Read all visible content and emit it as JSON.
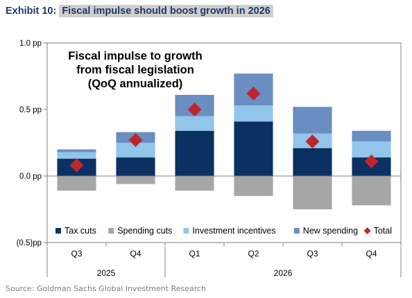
{
  "header": {
    "exhibit_label": "Exhibit 10:",
    "headline": "Fiscal impulse should boost growth in 2026"
  },
  "source": "Source: Goldman Sachs Global Investment Research",
  "chart_data": {
    "type": "bar",
    "stacked": true,
    "title_lines": [
      "Fiscal impulse to growth",
      "from fiscal legislation",
      "(QoQ annualized)"
    ],
    "categories": [
      "Q3",
      "Q4",
      "Q1",
      "Q2",
      "Q3",
      "Q4"
    ],
    "year_groups": [
      {
        "label": "2025",
        "start": 0,
        "end": 1
      },
      {
        "label": "2026",
        "start": 2,
        "end": 5
      }
    ],
    "ylim": [
      -0.5,
      1.0
    ],
    "yticks": [
      {
        "value": 1.0,
        "label": "1.0 pp"
      },
      {
        "value": 0.5,
        "label": "0.5 pp"
      },
      {
        "value": 0.0,
        "label": "0.0 pp"
      },
      {
        "value": -0.5,
        "label": "(0.5)pp"
      }
    ],
    "series": [
      {
        "name": "Tax cuts",
        "color": "#0a3161",
        "values": [
          0.13,
          0.14,
          0.34,
          0.41,
          0.21,
          0.14
        ]
      },
      {
        "name": "Spending cuts",
        "color": "#a6a6a6",
        "values": [
          -0.11,
          -0.06,
          -0.11,
          -0.15,
          -0.25,
          -0.22
        ]
      },
      {
        "name": "Investment incentives",
        "color": "#92c5ea",
        "values": [
          0.05,
          0.11,
          0.11,
          0.12,
          0.11,
          0.12
        ]
      },
      {
        "name": "New spending",
        "color": "#6a8ec2",
        "values": [
          0.02,
          0.08,
          0.16,
          0.24,
          0.2,
          0.08
        ]
      }
    ],
    "total": {
      "name": "Total",
      "color": "#c0262d",
      "values": [
        0.08,
        0.27,
        0.5,
        0.62,
        0.26,
        0.11
      ]
    }
  }
}
